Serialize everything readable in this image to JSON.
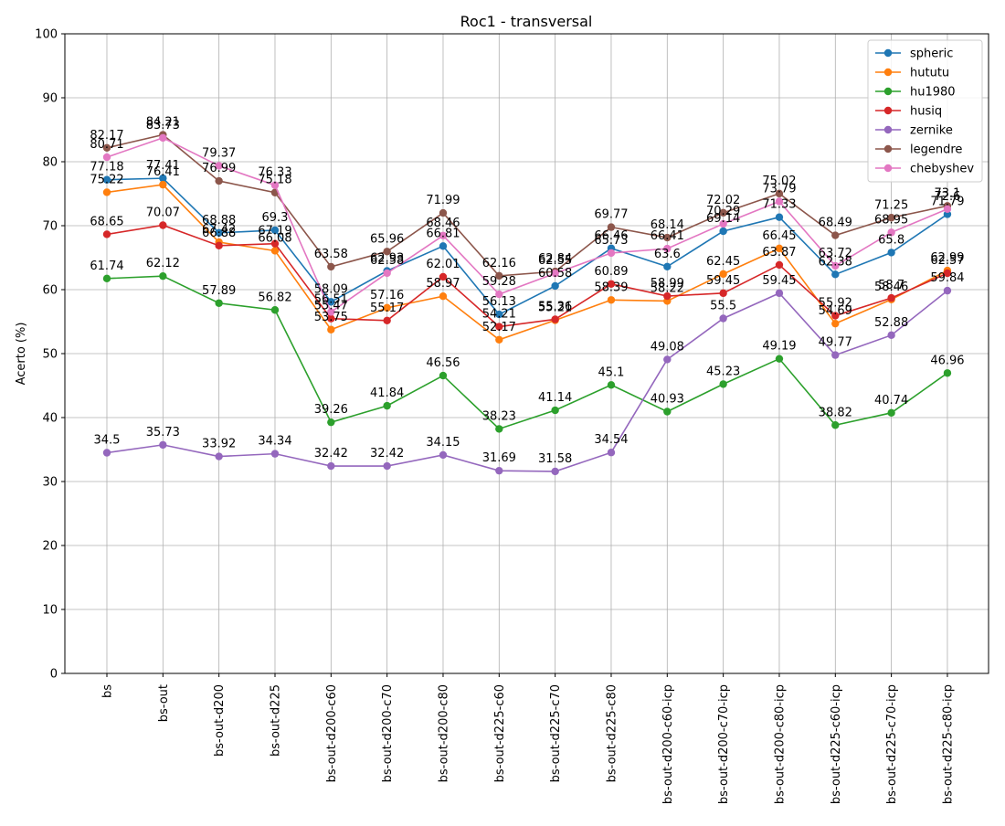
{
  "chart_data": {
    "type": "line",
    "title": "Roc1 - transversal",
    "xlabel": "",
    "ylabel": "Acerto (%)",
    "ylim": [
      0,
      100
    ],
    "yticks": [
      0,
      10,
      20,
      30,
      40,
      50,
      60,
      70,
      80,
      90,
      100
    ],
    "grid": true,
    "legend_position": "top-right",
    "categories": [
      "bs",
      "bs-out",
      "bs-out-d200",
      "bs-out-d225",
      "bs-out-d200-c60",
      "bs-out-d200-c70",
      "bs-out-d200-c80",
      "bs-out-d225-c60",
      "bs-out-d225-c70",
      "bs-out-d225-c80",
      "bs-out-d200-c60-icp",
      "bs-out-d200-c70-icp",
      "bs-out-d200-c80-icp",
      "bs-out-d225-c60-icp",
      "bs-out-d225-c70-icp",
      "bs-out-d225-c80-icp"
    ],
    "series": [
      {
        "name": "spheric",
        "color": "#1f77b4",
        "values": [
          77.18,
          77.41,
          68.88,
          69.3,
          58.09,
          62.93,
          66.81,
          56.13,
          60.58,
          66.46,
          63.6,
          69.14,
          71.33,
          62.38,
          65.8,
          71.79
        ]
      },
      {
        "name": "hututu",
        "color": "#ff7f0e",
        "values": [
          75.22,
          76.41,
          67.42,
          66.08,
          53.75,
          57.16,
          58.97,
          52.17,
          55.21,
          58.39,
          58.22,
          62.45,
          66.45,
          54.69,
          58.46,
          62.99
        ]
      },
      {
        "name": "hu1980",
        "color": "#2ca02c",
        "values": [
          61.74,
          62.12,
          57.89,
          56.82,
          39.26,
          41.84,
          46.56,
          38.23,
          41.14,
          45.1,
          40.93,
          45.23,
          49.19,
          38.82,
          40.74,
          46.96
        ]
      },
      {
        "name": "husiq",
        "color": "#d62728",
        "values": [
          68.65,
          70.07,
          66.88,
          67.19,
          55.47,
          55.17,
          62.01,
          54.21,
          55.36,
          60.89,
          58.99,
          59.45,
          63.87,
          55.92,
          58.7,
          62.57
        ]
      },
      {
        "name": "zernike",
        "color": "#9467bd",
        "values": [
          34.5,
          35.73,
          33.92,
          34.34,
          32.42,
          32.42,
          34.15,
          31.69,
          31.58,
          34.54,
          49.08,
          55.5,
          59.45,
          49.77,
          52.88,
          59.84
        ]
      },
      {
        "name": "legendre",
        "color": "#8c564b",
        "values": [
          82.17,
          84.21,
          76.99,
          75.18,
          63.58,
          65.96,
          71.99,
          62.16,
          62.84,
          69.77,
          68.14,
          72.02,
          75.02,
          68.49,
          71.25,
          73.1
        ]
      },
      {
        "name": "chebyshev",
        "color": "#e377c2",
        "values": [
          80.71,
          83.73,
          79.37,
          76.33,
          56.51,
          62.58,
          68.46,
          59.28,
          62.55,
          65.73,
          66.41,
          70.29,
          73.79,
          63.72,
          68.95,
          72.6
        ]
      }
    ]
  }
}
